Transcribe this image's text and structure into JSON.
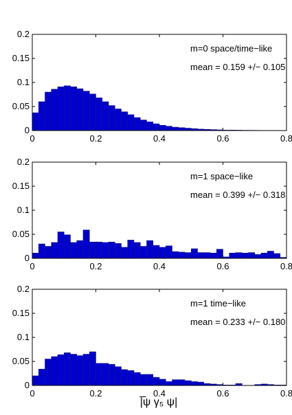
{
  "figure": {
    "xlabel": "|̅ψ γ₅ ψ|",
    "bar_color": "#0000d0",
    "bar_edge_color": "#1a1a66"
  },
  "chart_data": [
    {
      "type": "bar",
      "title": "",
      "xlabel": "",
      "ylabel": "",
      "xlim": [
        0,
        0.8
      ],
      "ylim": [
        0,
        0.2
      ],
      "x_ticks": [
        "0",
        "0.2",
        "0.4",
        "0.6",
        "0.8"
      ],
      "y_ticks": [
        "0",
        "0.05",
        "0.1",
        "0.15",
        "0.2"
      ],
      "bin_width": 0.02,
      "annotations": [
        "m=0 space/time−like",
        "mean = 0.159 +/− 0.105"
      ],
      "x": [
        0.01,
        0.03,
        0.05,
        0.07,
        0.09,
        0.11,
        0.13,
        0.15,
        0.17,
        0.19,
        0.21,
        0.23,
        0.25,
        0.27,
        0.29,
        0.31,
        0.33,
        0.35,
        0.37,
        0.39,
        0.41,
        0.43,
        0.45,
        0.47,
        0.49,
        0.51,
        0.53,
        0.55,
        0.57,
        0.59,
        0.61,
        0.63,
        0.65,
        0.67,
        0.69,
        0.71,
        0.73,
        0.75,
        0.77,
        0.79
      ],
      "values": [
        0.037,
        0.06,
        0.08,
        0.086,
        0.091,
        0.093,
        0.091,
        0.087,
        0.082,
        0.076,
        0.068,
        0.06,
        0.052,
        0.045,
        0.039,
        0.033,
        0.027,
        0.022,
        0.018,
        0.014,
        0.011,
        0.009,
        0.007,
        0.006,
        0.005,
        0.004,
        0.003,
        0.0025,
        0.002,
        0.0015,
        0.001,
        0.001,
        0.0008,
        0.0006,
        0.0005,
        0.0004,
        0.0003,
        0.0003,
        0.0002,
        0.0002
      ]
    },
    {
      "type": "bar",
      "title": "",
      "xlabel": "",
      "ylabel": "",
      "xlim": [
        0,
        0.8
      ],
      "ylim": [
        0,
        0.2
      ],
      "x_ticks": [
        "0",
        "0.2",
        "0.4",
        "0.6",
        "0.8"
      ],
      "y_ticks": [
        "0",
        "0.05",
        "0.1",
        "0.15",
        "0.2"
      ],
      "bin_width": 0.02,
      "annotations": [
        "m=1 space−like",
        "mean = 0.399 +/− 0.318"
      ],
      "x": [
        0.01,
        0.03,
        0.05,
        0.07,
        0.09,
        0.11,
        0.13,
        0.15,
        0.17,
        0.19,
        0.21,
        0.23,
        0.25,
        0.27,
        0.29,
        0.31,
        0.33,
        0.35,
        0.37,
        0.39,
        0.41,
        0.43,
        0.45,
        0.47,
        0.49,
        0.51,
        0.53,
        0.55,
        0.57,
        0.59,
        0.61,
        0.63,
        0.65,
        0.67,
        0.69,
        0.71,
        0.73,
        0.75,
        0.77,
        0.79
      ],
      "values": [
        0.011,
        0.03,
        0.025,
        0.033,
        0.055,
        0.049,
        0.033,
        0.037,
        0.059,
        0.034,
        0.034,
        0.033,
        0.034,
        0.031,
        0.023,
        0.038,
        0.033,
        0.025,
        0.037,
        0.027,
        0.023,
        0.026,
        0.014,
        0.013,
        0.012,
        0.02,
        0.012,
        0.012,
        0.011,
        0.019,
        0.003,
        0.011,
        0.012,
        0.011,
        0.012,
        0.008,
        0.011,
        0.015,
        0.01,
        0.002
      ]
    },
    {
      "type": "bar",
      "title": "",
      "xlabel": "",
      "ylabel": "",
      "xlim": [
        0,
        0.8
      ],
      "ylim": [
        0,
        0.2
      ],
      "x_ticks": [
        "0",
        "0.2",
        "0.4",
        "0.6",
        "0.8"
      ],
      "y_ticks": [
        "0",
        "0.05",
        "0.1",
        "0.15",
        "0.2"
      ],
      "bin_width": 0.02,
      "annotations": [
        "m=1 time−like",
        "mean = 0.233 +/− 0.180"
      ],
      "x": [
        0.01,
        0.03,
        0.05,
        0.07,
        0.09,
        0.11,
        0.13,
        0.15,
        0.17,
        0.19,
        0.21,
        0.23,
        0.25,
        0.27,
        0.29,
        0.31,
        0.33,
        0.35,
        0.37,
        0.39,
        0.41,
        0.43,
        0.45,
        0.47,
        0.49,
        0.51,
        0.53,
        0.55,
        0.57,
        0.59,
        0.61,
        0.63,
        0.65,
        0.67,
        0.69,
        0.71,
        0.73,
        0.75,
        0.77,
        0.79
      ],
      "values": [
        0.02,
        0.034,
        0.055,
        0.06,
        0.064,
        0.068,
        0.065,
        0.062,
        0.065,
        0.07,
        0.046,
        0.046,
        0.044,
        0.039,
        0.033,
        0.031,
        0.027,
        0.023,
        0.023,
        0.017,
        0.013,
        0.008,
        0.012,
        0.012,
        0.01,
        0.008,
        0.007,
        0.004,
        0.003,
        0.002,
        0.001,
        0.001,
        0.004,
        0.0,
        0.0,
        0.002,
        0.003,
        0.002,
        0.001,
        0.001
      ]
    }
  ]
}
